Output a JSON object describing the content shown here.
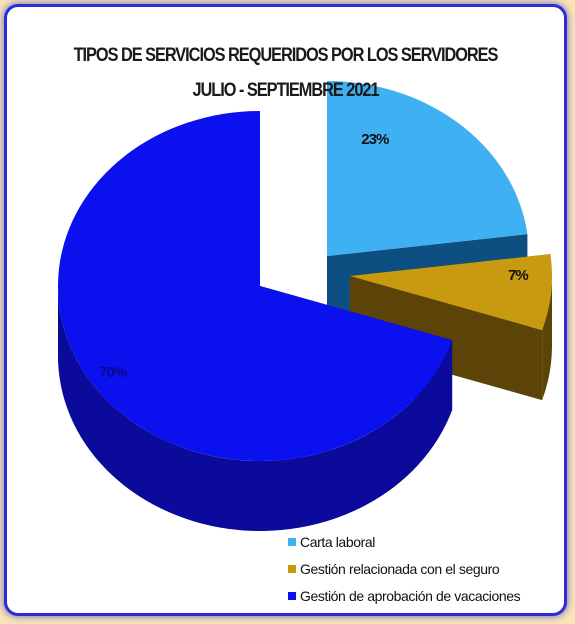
{
  "chart_data": {
    "type": "pie",
    "title": "TIPOS DE SERVICIOS REQUERIDOS POR LOS SERVIDORES",
    "subtitle": "JULIO - SEPTIEMBRE 2021",
    "slices": [
      {
        "name": "Carta laboral",
        "value": 23,
        "label": "23%",
        "color": "#3fb1f2",
        "side_color": "#0d4f80",
        "exploded": true
      },
      {
        "name": "Gestión relacionada con el seguro",
        "value": 7,
        "label": "7%",
        "color": "#c89a10",
        "side_color": "#5c4308",
        "exploded": true
      },
      {
        "name": "Gestión de aprobación de vacaciones",
        "value": 70,
        "label": "70%",
        "color": "#0a10ee",
        "side_color": "#0b0a9a",
        "exploded": false
      }
    ],
    "legend_placement": "bottom-right",
    "is_3d": true
  }
}
